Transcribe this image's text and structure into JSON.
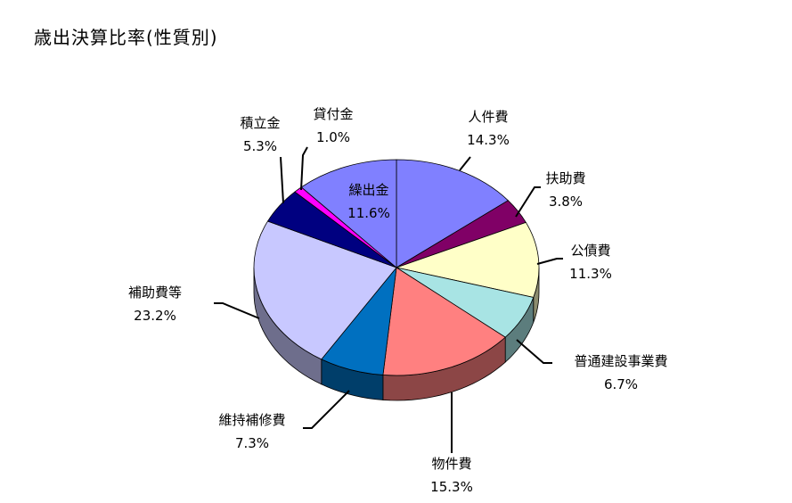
{
  "title": "歳出決算比率(性質別)",
  "chart_data": {
    "type": "pie",
    "title": "歳出決算比率(性質別)",
    "slices": [
      {
        "name": "人件費",
        "value": 14.3,
        "value_label": "14.3%",
        "color": "#8080FF"
      },
      {
        "name": "扶助費",
        "value": 3.8,
        "value_label": "3.8%",
        "color": "#800066"
      },
      {
        "name": "公債費",
        "value": 11.3,
        "value_label": "11.3%",
        "color": "#FFFFC8"
      },
      {
        "name": "普通建設事業費",
        "value": 6.7,
        "value_label": "6.7%",
        "color": "#A8E4E4"
      },
      {
        "name": "物件費",
        "value": 15.3,
        "value_label": "15.3%",
        "color": "#FF8080"
      },
      {
        "name": "維持補修費",
        "value": 7.3,
        "value_label": "7.3%",
        "color": "#0070C0"
      },
      {
        "name": "補助費等",
        "value": 23.2,
        "value_label": "23.2%",
        "color": "#C8C8FF"
      },
      {
        "name": "積立金",
        "value": 5.3,
        "value_label": "5.3%",
        "color": "#000080"
      },
      {
        "name": "貸付金",
        "value": 1.0,
        "value_label": "1.0%",
        "color": "#FF00FF"
      },
      {
        "name": "繰出金",
        "value": 11.6,
        "value_label": "11.6%",
        "color": "#8080FF"
      }
    ]
  }
}
